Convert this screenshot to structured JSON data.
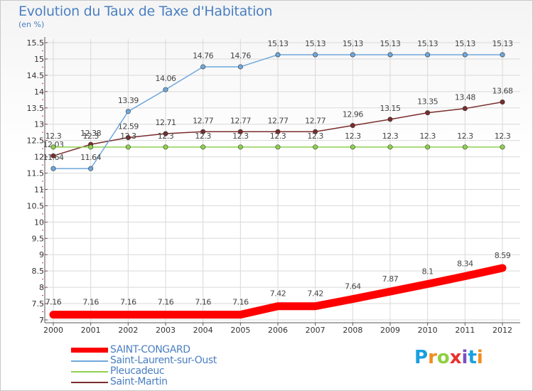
{
  "chart_data": {
    "type": "line",
    "title": "Evolution du Taux de Taxe d'Habitation",
    "subtitle": "(en %)",
    "xlabel": "",
    "ylabel": "",
    "categories": [
      "2000",
      "2001",
      "2002",
      "2003",
      "2004",
      "2005",
      "2006",
      "2007",
      "2008",
      "2009",
      "2010",
      "2011",
      "2012"
    ],
    "ylim": [
      7,
      15.5
    ],
    "yticks": [
      "7",
      "7.5",
      "8",
      "8.5",
      "9",
      "9.5",
      "10",
      "10.5",
      "11",
      "11.5",
      "12",
      "12.5",
      "13",
      "13.5",
      "14",
      "14.5",
      "15",
      "15.5"
    ],
    "grid": true,
    "legend_position": "bottom-left",
    "series": [
      {
        "name": "SAINT-CONGARD",
        "color": "#ff0000",
        "highlight": true,
        "values": [
          7.16,
          7.16,
          7.16,
          7.16,
          7.16,
          7.16,
          7.42,
          7.42,
          7.64,
          7.87,
          8.1,
          8.34,
          8.59
        ],
        "labels": [
          "7.16",
          "7.16",
          "7.16",
          "7.16",
          "7.16",
          "7.16",
          "7.42",
          "7.42",
          "7.64",
          "7.87",
          "8.1",
          "8.34",
          "8.59"
        ]
      },
      {
        "name": "Saint-Laurent-sur-Oust",
        "color": "#6fa8dc",
        "values": [
          11.64,
          11.64,
          13.39,
          14.06,
          14.76,
          14.76,
          15.13,
          15.13,
          15.13,
          15.13,
          15.13,
          15.13,
          15.13
        ],
        "labels": [
          "11.64",
          "11.64",
          "13.39",
          "14.06",
          "14.76",
          "14.76",
          "15.13",
          "15.13",
          "15.13",
          "15.13",
          "15.13",
          "15.13",
          "15.13"
        ]
      },
      {
        "name": "Pleucadeuc",
        "color": "#8fd14f",
        "values": [
          12.3,
          12.3,
          12.3,
          12.3,
          12.3,
          12.3,
          12.3,
          12.3,
          12.3,
          12.3,
          12.3,
          12.3,
          12.3
        ],
        "labels": [
          "12.3",
          "12.3",
          "12.3",
          "12.3",
          "12.3",
          "12.3",
          "12.3",
          "12.3",
          "12.3",
          "12.3",
          "12.3",
          "12.3",
          "12.3"
        ]
      },
      {
        "name": "Saint-Martin",
        "color": "#7b2c2c",
        "values": [
          12.03,
          12.38,
          12.59,
          12.71,
          12.77,
          12.77,
          12.77,
          12.77,
          12.96,
          13.15,
          13.35,
          13.48,
          13.68
        ],
        "labels": [
          "12.03",
          "12.38",
          "12.59",
          "12.71",
          "12.77",
          "12.77",
          "12.77",
          "12.77",
          "12.96",
          "13.15",
          "13.35",
          "13.48",
          "13.68"
        ]
      }
    ]
  },
  "logo": {
    "letters": [
      "P",
      "r",
      "o",
      "x",
      "i",
      "t",
      "i"
    ],
    "colors": [
      "#1a9fe0",
      "#f28c1e",
      "#8fcf3f",
      "#e8322e",
      "#7b4fc4",
      "#1a9fe0",
      "#f28c1e"
    ]
  }
}
